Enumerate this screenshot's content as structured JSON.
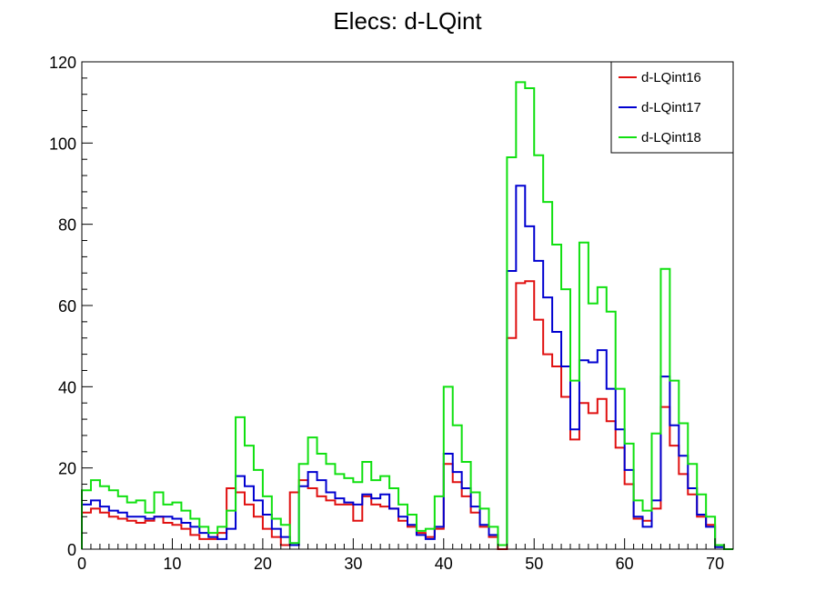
{
  "chart_data": {
    "type": "histogram",
    "title": "Elecs: d-LQint",
    "xlabel": "",
    "ylabel": "",
    "xlim": [
      0,
      72
    ],
    "ylim": [
      0,
      120
    ],
    "bin_width": 1,
    "x_ticks": [
      0,
      10,
      20,
      30,
      40,
      50,
      60,
      70
    ],
    "y_ticks": [
      0,
      20,
      40,
      60,
      80,
      100,
      120
    ],
    "grid": false,
    "legend_position": "top-right",
    "series": [
      {
        "name": "d-LQint16",
        "color": "#e01010",
        "values": [
          9,
          10,
          9,
          8,
          7.5,
          7,
          6.5,
          7,
          8,
          6.5,
          6,
          5,
          3.5,
          2.5,
          2.5,
          4,
          15,
          14,
          11,
          8,
          5,
          3,
          1,
          14,
          17,
          15,
          13,
          12,
          11,
          11,
          7,
          13,
          11,
          10.5,
          10,
          7,
          5.5,
          4,
          3,
          5,
          21,
          16.5,
          13,
          9,
          5.5,
          3,
          0,
          52,
          65.5,
          66,
          56.5,
          48,
          45,
          37.5,
          27,
          36,
          33.5,
          37,
          31.5,
          25,
          16,
          7.5,
          7,
          10,
          35,
          25.5,
          18.5,
          13.5,
          8,
          6,
          1,
          0
        ]
      },
      {
        "name": "d-LQint17",
        "color": "#0000d0",
        "values": [
          11,
          12,
          10.5,
          9.5,
          9,
          8,
          8,
          7.5,
          8,
          8,
          7.5,
          6.5,
          5.5,
          4,
          3,
          2.5,
          5,
          18,
          15.5,
          12,
          8.5,
          5,
          3,
          1,
          15.5,
          19,
          17,
          14,
          12.5,
          11.5,
          11,
          13.5,
          12.5,
          13.5,
          10,
          8,
          6,
          3.5,
          2.5,
          5.5,
          23.5,
          19,
          15,
          10.5,
          6,
          3.5,
          1,
          68.5,
          89.5,
          79.5,
          71,
          62,
          53.5,
          45,
          29.5,
          46.5,
          46,
          49,
          39.5,
          29.5,
          19.5,
          8,
          5.5,
          12,
          42.5,
          30.5,
          23,
          15,
          8.5,
          5.5,
          0.5,
          0
        ]
      },
      {
        "name": "d-LQint18",
        "color": "#10e010",
        "values": [
          14.5,
          17,
          15.5,
          14.5,
          13,
          11.5,
          12,
          9,
          14,
          11,
          11.5,
          9.5,
          7.5,
          5.5,
          4,
          5.5,
          9.5,
          32.5,
          25.5,
          19.5,
          13,
          7.5,
          6,
          1.5,
          21,
          27.5,
          23.5,
          21,
          18.5,
          17.5,
          16.5,
          21.5,
          17,
          18,
          15,
          11,
          8.5,
          4.5,
          5,
          13,
          40,
          30.5,
          21.5,
          14,
          10,
          5.5,
          1,
          96.5,
          115,
          113.5,
          97,
          85.5,
          75,
          64,
          41.5,
          75.5,
          60.5,
          64.5,
          58.5,
          39.5,
          26,
          12,
          9.5,
          28.5,
          69,
          41.5,
          31,
          21,
          13.5,
          8,
          1,
          0
        ]
      }
    ]
  }
}
